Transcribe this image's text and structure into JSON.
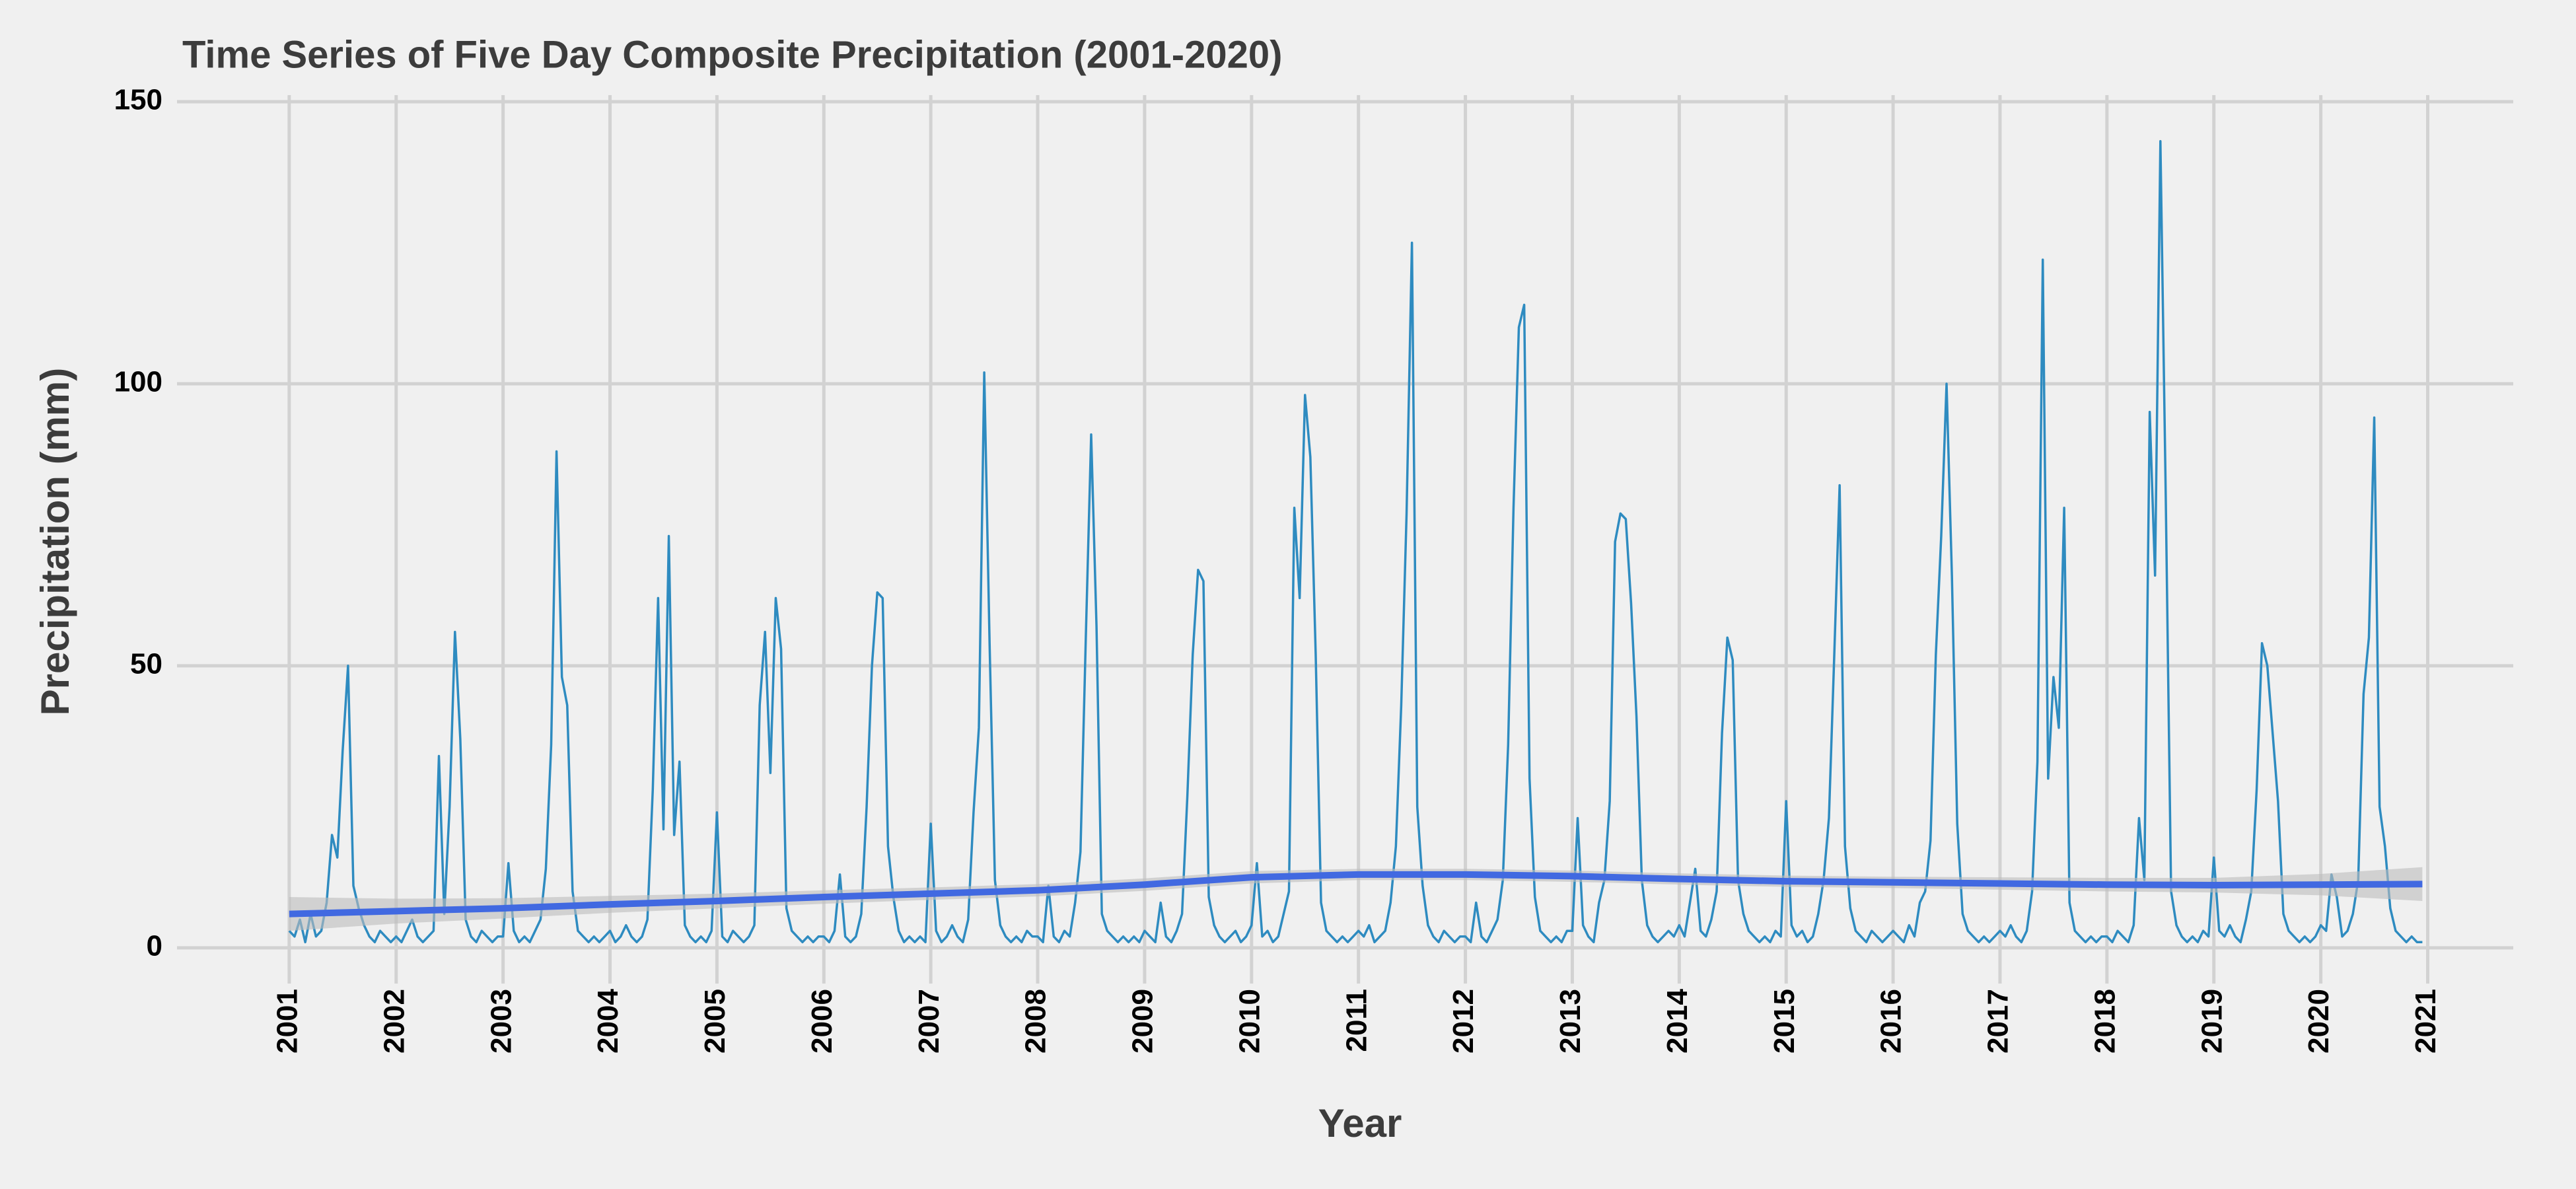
{
  "chart_data": {
    "type": "line",
    "title": "Time Series of Five Day Composite Precipitation (2001-2020)",
    "xlabel": "Year",
    "ylabel": "Precipitation (mm)",
    "color": "#2e8bc0",
    "x": [
      2001,
      2001.05,
      2001.1,
      2001.15,
      2001.2,
      2001.25,
      2001.3,
      2001.35,
      2001.4,
      2001.45,
      2001.5,
      2001.55,
      2001.6,
      2001.65,
      2001.7,
      2001.75,
      2001.8,
      2001.85,
      2001.9,
      2001.95,
      2002,
      2002.05,
      2002.1,
      2002.15,
      2002.2,
      2002.25,
      2002.3,
      2002.35,
      2002.4,
      2002.45,
      2002.5,
      2002.55,
      2002.6,
      2002.65,
      2002.7,
      2002.75,
      2002.8,
      2002.85,
      2002.9,
      2002.95,
      2003,
      2003.05,
      2003.1,
      2003.15,
      2003.2,
      2003.25,
      2003.3,
      2003.35,
      2003.4,
      2003.45,
      2003.5,
      2003.55,
      2003.6,
      2003.65,
      2003.7,
      2003.75,
      2003.8,
      2003.85,
      2003.9,
      2003.95,
      2004,
      2004.05,
      2004.1,
      2004.15,
      2004.2,
      2004.25,
      2004.3,
      2004.35,
      2004.4,
      2004.45,
      2004.5,
      2004.55,
      2004.6,
      2004.65,
      2004.7,
      2004.75,
      2004.8,
      2004.85,
      2004.9,
      2004.95,
      2005,
      2005.05,
      2005.1,
      2005.15,
      2005.2,
      2005.25,
      2005.3,
      2005.35,
      2005.4,
      2005.45,
      2005.5,
      2005.55,
      2005.6,
      2005.65,
      2005.7,
      2005.75,
      2005.8,
      2005.85,
      2005.9,
      2005.95,
      2006,
      2006.05,
      2006.1,
      2006.15,
      2006.2,
      2006.25,
      2006.3,
      2006.35,
      2006.4,
      2006.45,
      2006.5,
      2006.55,
      2006.6,
      2006.65,
      2006.7,
      2006.75,
      2006.8,
      2006.85,
      2006.9,
      2006.95,
      2007,
      2007.05,
      2007.1,
      2007.15,
      2007.2,
      2007.25,
      2007.3,
      2007.35,
      2007.4,
      2007.45,
      2007.5,
      2007.55,
      2007.6,
      2007.65,
      2007.7,
      2007.75,
      2007.8,
      2007.85,
      2007.9,
      2007.95,
      2008,
      2008.05,
      2008.1,
      2008.15,
      2008.2,
      2008.25,
      2008.3,
      2008.35,
      2008.4,
      2008.45,
      2008.5,
      2008.55,
      2008.6,
      2008.65,
      2008.7,
      2008.75,
      2008.8,
      2008.85,
      2008.9,
      2008.95,
      2009,
      2009.05,
      2009.1,
      2009.15,
      2009.2,
      2009.25,
      2009.3,
      2009.35,
      2009.4,
      2009.45,
      2009.5,
      2009.55,
      2009.6,
      2009.65,
      2009.7,
      2009.75,
      2009.8,
      2009.85,
      2009.9,
      2009.95,
      2010,
      2010.05,
      2010.1,
      2010.15,
      2010.2,
      2010.25,
      2010.3,
      2010.35,
      2010.4,
      2010.45,
      2010.5,
      2010.55,
      2010.6,
      2010.65,
      2010.7,
      2010.75,
      2010.8,
      2010.85,
      2010.9,
      2010.95,
      2011,
      2011.05,
      2011.1,
      2011.15,
      2011.2,
      2011.25,
      2011.3,
      2011.35,
      2011.4,
      2011.45,
      2011.5,
      2011.55,
      2011.6,
      2011.65,
      2011.7,
      2011.75,
      2011.8,
      2011.85,
      2011.9,
      2011.95,
      2012,
      2012.05,
      2012.1,
      2012.15,
      2012.2,
      2012.25,
      2012.3,
      2012.35,
      2012.4,
      2012.45,
      2012.5,
      2012.55,
      2012.6,
      2012.65,
      2012.7,
      2012.75,
      2012.8,
      2012.85,
      2012.9,
      2012.95,
      2013,
      2013.05,
      2013.1,
      2013.15,
      2013.2,
      2013.25,
      2013.3,
      2013.35,
      2013.4,
      2013.45,
      2013.5,
      2013.55,
      2013.6,
      2013.65,
      2013.7,
      2013.75,
      2013.8,
      2013.85,
      2013.9,
      2013.95,
      2014,
      2014.05,
      2014.1,
      2014.15,
      2014.2,
      2014.25,
      2014.3,
      2014.35,
      2014.4,
      2014.45,
      2014.5,
      2014.55,
      2014.6,
      2014.65,
      2014.7,
      2014.75,
      2014.8,
      2014.85,
      2014.9,
      2014.95,
      2015,
      2015.05,
      2015.1,
      2015.15,
      2015.2,
      2015.25,
      2015.3,
      2015.35,
      2015.4,
      2015.45,
      2015.5,
      2015.55,
      2015.6,
      2015.65,
      2015.7,
      2015.75,
      2015.8,
      2015.85,
      2015.9,
      2015.95,
      2016,
      2016.05,
      2016.1,
      2016.15,
      2016.2,
      2016.25,
      2016.3,
      2016.35,
      2016.4,
      2016.45,
      2016.5,
      2016.55,
      2016.6,
      2016.65,
      2016.7,
      2016.75,
      2016.8,
      2016.85,
      2016.9,
      2016.95,
      2017,
      2017.05,
      2017.1,
      2017.15,
      2017.2,
      2017.25,
      2017.3,
      2017.35,
      2017.4,
      2017.45,
      2017.5,
      2017.55,
      2017.6,
      2017.65,
      2017.7,
      2017.75,
      2017.8,
      2017.85,
      2017.9,
      2017.95,
      2018,
      2018.05,
      2018.1,
      2018.15,
      2018.2,
      2018.25,
      2018.3,
      2018.35,
      2018.4,
      2018.45,
      2018.5,
      2018.55,
      2018.6,
      2018.65,
      2018.7,
      2018.75,
      2018.8,
      2018.85,
      2018.9,
      2018.95,
      2019,
      2019.05,
      2019.1,
      2019.15,
      2019.2,
      2019.25,
      2019.3,
      2019.35,
      2019.4,
      2019.45,
      2019.5,
      2019.55,
      2019.6,
      2019.65,
      2019.7,
      2019.75,
      2019.8,
      2019.85,
      2019.9,
      2019.95,
      2020,
      2020.05,
      2020.1,
      2020.15,
      2020.2,
      2020.25,
      2020.3,
      2020.35,
      2020.4,
      2020.45,
      2020.5,
      2020.55,
      2020.6,
      2020.65,
      2020.7,
      2020.75,
      2020.8,
      2020.85,
      2020.9,
      2020.95
    ],
    "values": [
      3,
      2,
      5,
      1,
      6,
      2,
      3,
      8,
      20,
      16,
      35,
      50,
      11,
      7,
      4,
      2,
      1,
      3,
      2,
      1,
      2,
      1,
      3,
      5,
      2,
      1,
      2,
      3,
      34,
      6,
      25,
      56,
      37,
      5,
      2,
      1,
      3,
      2,
      1,
      2,
      2,
      15,
      3,
      1,
      2,
      1,
      3,
      5,
      14,
      36,
      88,
      48,
      43,
      10,
      3,
      2,
      1,
      2,
      1,
      2,
      3,
      1,
      2,
      4,
      2,
      1,
      2,
      5,
      28,
      62,
      21,
      73,
      20,
      33,
      4,
      2,
      1,
      2,
      1,
      3,
      24,
      2,
      1,
      3,
      2,
      1,
      2,
      4,
      43,
      56,
      31,
      62,
      53,
      7,
      3,
      2,
      1,
      2,
      1,
      2,
      2,
      1,
      3,
      13,
      2,
      1,
      2,
      6,
      25,
      50,
      63,
      62,
      18,
      9,
      3,
      1,
      2,
      1,
      2,
      1,
      22,
      3,
      1,
      2,
      4,
      2,
      1,
      5,
      24,
      39,
      102,
      54,
      12,
      4,
      2,
      1,
      2,
      1,
      3,
      2,
      2,
      1,
      11,
      2,
      1,
      3,
      2,
      8,
      17,
      55,
      91,
      57,
      6,
      3,
      2,
      1,
      2,
      1,
      2,
      1,
      3,
      2,
      1,
      8,
      2,
      1,
      3,
      6,
      27,
      52,
      67,
      65,
      9,
      4,
      2,
      1,
      2,
      3,
      1,
      2,
      4,
      15,
      2,
      3,
      1,
      2,
      6,
      10,
      78,
      62,
      98,
      87,
      52,
      8,
      3,
      2,
      1,
      2,
      1,
      2,
      3,
      2,
      4,
      1,
      2,
      3,
      8,
      18,
      43,
      77,
      125,
      25,
      11,
      4,
      2,
      1,
      3,
      2,
      1,
      2,
      2,
      1,
      8,
      2,
      1,
      3,
      5,
      12,
      36,
      78,
      110,
      114,
      30,
      9,
      3,
      2,
      1,
      2,
      1,
      3,
      3,
      23,
      4,
      2,
      1,
      8,
      12,
      26,
      72,
      77,
      76,
      61,
      41,
      12,
      4,
      2,
      1,
      2,
      3,
      2,
      4,
      2,
      8,
      14,
      3,
      2,
      5,
      10,
      38,
      55,
      51,
      12,
      6,
      3,
      2,
      1,
      2,
      1,
      3,
      2,
      26,
      4,
      2,
      3,
      1,
      2,
      6,
      12,
      23,
      52,
      82,
      18,
      7,
      3,
      2,
      1,
      3,
      2,
      1,
      2,
      3,
      2,
      1,
      4,
      2,
      8,
      10,
      19,
      52,
      73,
      100,
      66,
      22,
      6,
      3,
      2,
      1,
      2,
      1,
      2,
      3,
      2,
      4,
      2,
      1,
      3,
      10,
      33,
      122,
      30,
      48,
      39,
      78,
      8,
      3,
      2,
      1,
      2,
      1,
      2,
      2,
      1,
      3,
      2,
      1,
      4,
      23,
      12,
      95,
      66,
      143,
      80,
      10,
      4,
      2,
      1,
      2,
      1,
      3,
      2,
      16,
      3,
      2,
      4,
      2,
      1,
      5,
      10,
      28,
      54,
      50,
      38,
      26,
      6,
      3,
      2,
      1,
      2,
      1,
      2,
      4,
      3,
      13,
      9,
      2,
      3,
      6,
      12,
      45,
      55,
      94,
      25,
      18,
      7,
      3,
      2,
      1,
      2,
      1,
      1
    ],
    "trend": {
      "color": "#4169e1",
      "band_color": "#bdbdbd",
      "x": [
        2001,
        2002,
        2003,
        2004,
        2005,
        2006,
        2007,
        2008,
        2009,
        2010,
        2011,
        2012,
        2013,
        2014,
        2015,
        2016,
        2017,
        2018,
        2019,
        2020,
        2020.95
      ],
      "values": [
        6,
        6.5,
        7,
        7.7,
        8.3,
        9,
        9.6,
        10.2,
        11.2,
        12.5,
        13,
        13,
        12.7,
        12.2,
        11.8,
        11.6,
        11.4,
        11.2,
        11.1,
        11.2,
        11.3
      ],
      "lower": [
        3,
        4.3,
        5.2,
        6.2,
        7,
        7.8,
        8.5,
        9.1,
        10.1,
        11.4,
        12,
        12,
        11.7,
        11.2,
        10.8,
        10.6,
        10.3,
        10,
        9.8,
        9.3,
        8.3
      ],
      "upper": [
        9,
        8.7,
        8.8,
        9.2,
        9.6,
        10.2,
        10.7,
        11.3,
        12.3,
        13.6,
        14,
        14,
        13.7,
        13.2,
        12.8,
        12.6,
        12.5,
        12.4,
        12.4,
        13.1,
        14.3
      ]
    },
    "xlim": [
      2000,
      2021.8
    ],
    "ylim": [
      -4,
      150
    ],
    "xticks": [
      2001,
      2002,
      2003,
      2004,
      2005,
      2006,
      2007,
      2008,
      2009,
      2010,
      2011,
      2012,
      2013,
      2014,
      2015,
      2016,
      2017,
      2018,
      2019,
      2020,
      2021
    ],
    "yticks": [
      0,
      50,
      100,
      150
    ],
    "grid": true
  }
}
